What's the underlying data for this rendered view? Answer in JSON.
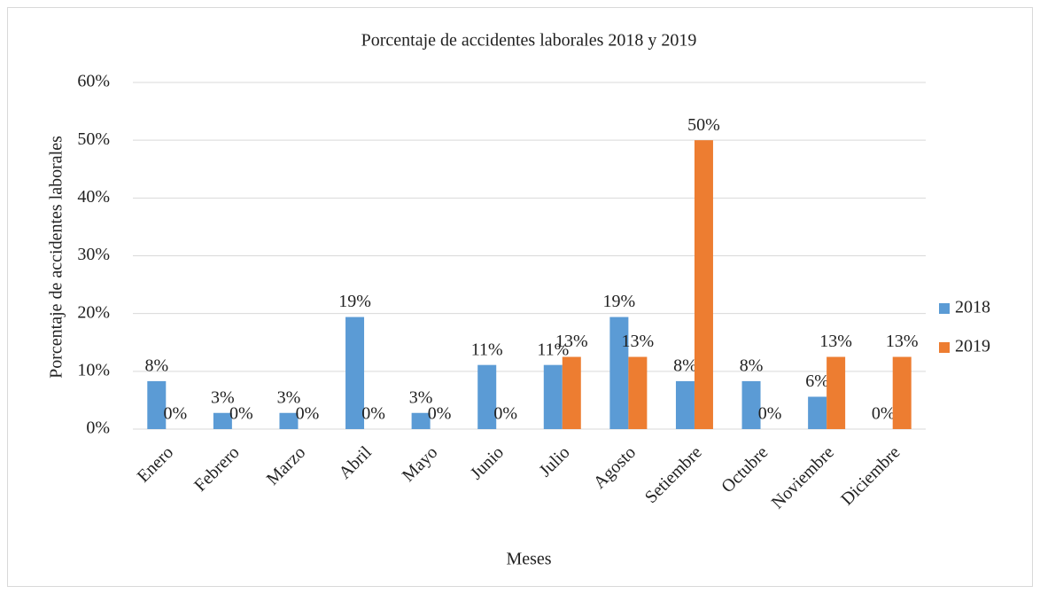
{
  "chart_data": {
    "type": "bar",
    "title": "Porcentaje de accidentes laborales 2018 y 2019",
    "x_label": "Meses",
    "y_label": "Porcentaje de accidentes laborales",
    "categories": [
      "Enero",
      "Febrero",
      "Marzo",
      "Abril",
      "Mayo",
      "Junio",
      "Julio",
      "Agosto",
      "Setiembre",
      "Octubre",
      "Noviembre",
      "Diciembre"
    ],
    "series": [
      {
        "name": "2018",
        "color": "#5b9bd5",
        "values": [
          8.3,
          2.8,
          2.8,
          19.4,
          2.8,
          11.1,
          11.1,
          19.4,
          8.3,
          8.3,
          5.6,
          0
        ],
        "value_labels": [
          "8%",
          "3%",
          "3%",
          "19%",
          "3%",
          "11%",
          "11%",
          "19%",
          "8%",
          "8%",
          "6%",
          "0%"
        ]
      },
      {
        "name": "2019",
        "color": "#ed7d31",
        "values": [
          0,
          0,
          0,
          0,
          0,
          0,
          12.5,
          12.5,
          50,
          0,
          12.5,
          12.5
        ],
        "value_labels": [
          "0%",
          "0%",
          "0%",
          "0%",
          "0%",
          "0%",
          "13%",
          "13%",
          "50%",
          "0%",
          "13%",
          "13%"
        ]
      }
    ],
    "ylim": [
      0,
      60
    ],
    "yticks": [
      {
        "value": 0,
        "label": "0%"
      },
      {
        "value": 10,
        "label": "10%"
      },
      {
        "value": 20,
        "label": "20%"
      },
      {
        "value": 30,
        "label": "30%"
      },
      {
        "value": 40,
        "label": "40%"
      },
      {
        "value": 50,
        "label": "50%"
      },
      {
        "value": 60,
        "label": "60%"
      }
    ],
    "grid": true,
    "legend": "right"
  }
}
